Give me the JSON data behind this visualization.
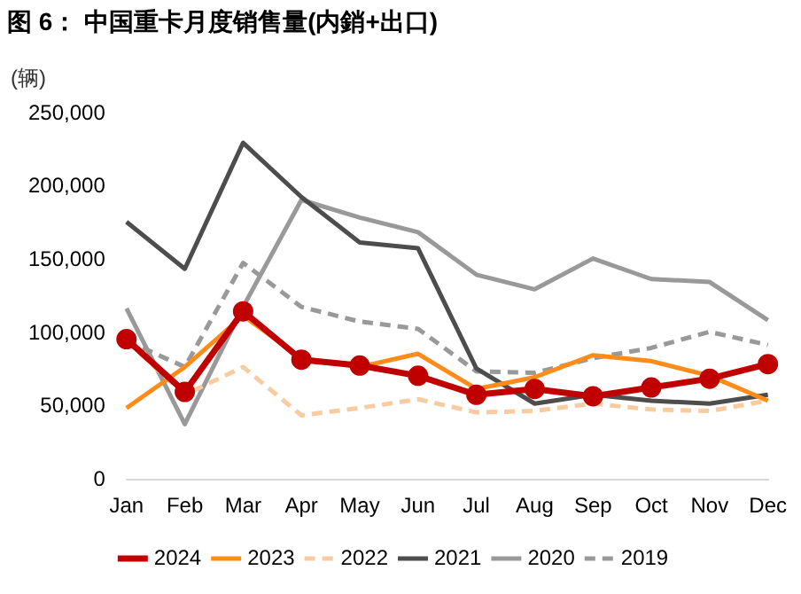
{
  "chart_data": {
    "type": "line",
    "title": "图 6： 中国重卡月度销售量(内銷+出口)",
    "ylabel": "(辆)",
    "categories": [
      "Jan",
      "Feb",
      "Mar",
      "Apr",
      "May",
      "Jun",
      "Jul",
      "Aug",
      "Sep",
      "Oct",
      "Nov",
      "Dec"
    ],
    "ylim": [
      0,
      250000
    ],
    "yticks": [
      0,
      {
        "value": 50000,
        "label": "50,000"
      },
      {
        "value": 100000,
        "label": "100,000"
      },
      {
        "value": 150000,
        "label": "150,000"
      },
      {
        "value": 200000,
        "label": "200,000"
      },
      {
        "value": 250000,
        "label": "250,000"
      }
    ],
    "grid": false,
    "legend": "bottom",
    "series": [
      {
        "name": "2024",
        "color": "#c00000",
        "marker": "circle",
        "line_style": "solid",
        "values": [
          96000,
          60000,
          115000,
          82000,
          78000,
          71000,
          58000,
          62000,
          57000,
          63000,
          69000,
          79000
        ]
      },
      {
        "name": "2023",
        "color": "#ff8c1a",
        "marker": "none",
        "line_style": "solid",
        "values": [
          49000,
          77000,
          112000,
          83000,
          77000,
          86000,
          62000,
          70000,
          85000,
          81000,
          71000,
          54000
        ]
      },
      {
        "name": "2022",
        "color": "#f8cba0",
        "marker": "none",
        "line_style": "dashed",
        "values": [
          95000,
          58000,
          77000,
          44000,
          49000,
          55000,
          46000,
          47000,
          52000,
          48000,
          47000,
          54000
        ]
      },
      {
        "name": "2021",
        "color": "#4d4d4d",
        "marker": "none",
        "line_style": "solid",
        "values": [
          176000,
          144000,
          230000,
          193000,
          162000,
          158000,
          76000,
          52000,
          58000,
          54000,
          52000,
          58000
        ]
      },
      {
        "name": "2020",
        "color": "#999999",
        "marker": "none",
        "line_style": "solid",
        "values": [
          117000,
          38000,
          118000,
          191000,
          179000,
          169000,
          140000,
          130000,
          151000,
          137000,
          135000,
          109000
        ]
      },
      {
        "name": "2019",
        "color": "#999999",
        "marker": "none",
        "line_style": "dashed",
        "values": [
          95000,
          77000,
          148000,
          118000,
          108000,
          103000,
          74000,
          73000,
          83000,
          90000,
          101000,
          92000
        ]
      }
    ]
  }
}
